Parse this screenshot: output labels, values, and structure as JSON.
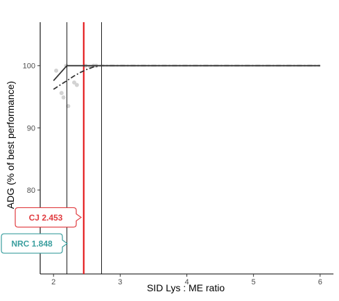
{
  "chart_data": {
    "type": "line",
    "xlabel": "SID Lys : ME ratio",
    "ylabel": "ADG (% of best performance)",
    "xlim": [
      1.8,
      6.2
    ],
    "ylim": [
      66.5,
      107
    ],
    "x_ticks": [
      2,
      3,
      4,
      5,
      6
    ],
    "y_ticks": [
      80,
      90,
      100
    ],
    "grid": false,
    "observed_points": {
      "color": "#d3d3d3",
      "x": [
        2.04,
        2.12,
        2.15,
        2.19,
        2.22,
        2.31,
        2.35,
        2.48,
        2.55,
        2.6,
        2.64
      ],
      "y": [
        99.2,
        95.6,
        94.9,
        100.0,
        93.5,
        97.3,
        96.9,
        100.0,
        99.8,
        100.0,
        100.0
      ]
    },
    "series": [
      {
        "style": "solid",
        "color": "#333333",
        "x": [
          2.0,
          2.2,
          6.0
        ],
        "y": [
          97.6,
          100.0,
          100.0
        ]
      },
      {
        "style": "dashdot",
        "color": "#333333",
        "x": [
          2.0,
          2.1,
          2.2,
          2.3,
          2.4,
          2.5,
          2.6,
          2.7,
          6.0
        ],
        "y": [
          96.2,
          96.9,
          97.6,
          98.3,
          98.9,
          99.4,
          99.8,
          100.0,
          100.0
        ]
      }
    ],
    "vertical_lines": [
      {
        "x": 2.2,
        "color": "#000000"
      },
      {
        "x": 2.453,
        "color": "#e41a1c"
      },
      {
        "x": 2.72,
        "color": "#000000"
      }
    ],
    "callouts": [
      {
        "label": "CJ",
        "value": "2.453",
        "y": 75.6,
        "color": "#e03a3e"
      },
      {
        "label": "NRC",
        "value": "1.848",
        "y": 71.4,
        "color": "#3a9e9e"
      }
    ]
  }
}
